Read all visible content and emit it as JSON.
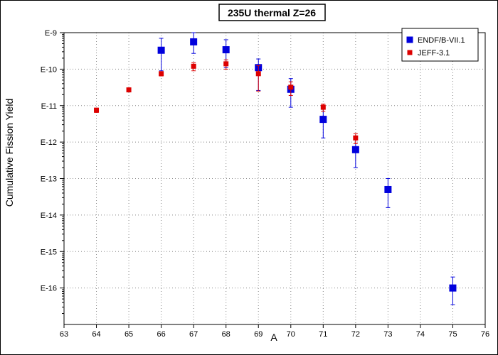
{
  "chart_data": {
    "type": "scatter",
    "title": "235U thermal Z=26",
    "xlabel": "A",
    "ylabel": "Cumulative Fission Yield",
    "xlim": [
      63,
      76
    ],
    "ylim": [
      1e-17,
      1e-09
    ],
    "yscale": "log",
    "grid": true,
    "legend_position": "top-right",
    "x_ticks": [
      63,
      64,
      65,
      66,
      67,
      68,
      69,
      70,
      71,
      72,
      73,
      74,
      75,
      76
    ],
    "y_ticks": [
      {
        "value": 1e-16,
        "label": "E-16"
      },
      {
        "value": 1e-15,
        "label": "E-15"
      },
      {
        "value": 1e-14,
        "label": "E-14"
      },
      {
        "value": 1e-13,
        "label": "E-13"
      },
      {
        "value": 1e-12,
        "label": "E-12"
      },
      {
        "value": 1e-11,
        "label": "E-11"
      },
      {
        "value": 1e-10,
        "label": "E-10"
      },
      {
        "value": 1e-09,
        "label": "E-9"
      }
    ],
    "series": [
      {
        "name": "ENDF/B-VII.1",
        "color": "#0000dd",
        "marker": "square-large",
        "points": [
          {
            "x": 66,
            "y": 3.3e-10,
            "ylow": 9e-11,
            "yhigh": 7e-10
          },
          {
            "x": 67,
            "y": 5.6e-10,
            "ylow": 2.7e-10,
            "yhigh": 1e-09
          },
          {
            "x": 68,
            "y": 3.4e-10,
            "ylow": 1.1e-10,
            "yhigh": 6.4e-10
          },
          {
            "x": 69,
            "y": 1.1e-10,
            "ylow": 2.6e-11,
            "yhigh": 1.9e-10
          },
          {
            "x": 70,
            "y": 2.8e-11,
            "ylow": 9e-12,
            "yhigh": 5.5e-11
          },
          {
            "x": 71,
            "y": 4.2e-12,
            "ylow": 1.3e-12,
            "yhigh": 8e-12
          },
          {
            "x": 72,
            "y": 6.2e-13,
            "ylow": 2e-13,
            "yhigh": 1.2e-12
          },
          {
            "x": 73,
            "y": 5e-14,
            "ylow": 1.6e-14,
            "yhigh": 1e-13
          },
          {
            "x": 75,
            "y": 1e-16,
            "ylow": 3.5e-17,
            "yhigh": 2e-16
          }
        ]
      },
      {
        "name": "JEFF-3.1",
        "color": "#dd0000",
        "marker": "square-small",
        "points": [
          {
            "x": 64,
            "y": 7.5e-12,
            "ylow": 6.5e-12,
            "yhigh": 8.5e-12
          },
          {
            "x": 65,
            "y": 2.7e-11,
            "ylow": 2.4e-11,
            "yhigh": 3e-11
          },
          {
            "x": 66,
            "y": 7.5e-11,
            "ylow": 6.5e-11,
            "yhigh": 8.5e-11
          },
          {
            "x": 67,
            "y": 1.2e-10,
            "ylow": 9e-11,
            "yhigh": 1.5e-10
          },
          {
            "x": 68,
            "y": 1.4e-10,
            "ylow": 1e-10,
            "yhigh": 1.8e-10
          },
          {
            "x": 69,
            "y": 7.5e-11,
            "ylow": 2.5e-11,
            "yhigh": 1.25e-10
          },
          {
            "x": 70,
            "y": 3.2e-11,
            "ylow": 1.9e-11,
            "yhigh": 4.5e-11
          },
          {
            "x": 71,
            "y": 9e-12,
            "ylow": 7e-12,
            "yhigh": 1.1e-11
          },
          {
            "x": 72,
            "y": 1.3e-12,
            "ylow": 9e-13,
            "yhigh": 1.7e-12
          }
        ]
      }
    ]
  }
}
